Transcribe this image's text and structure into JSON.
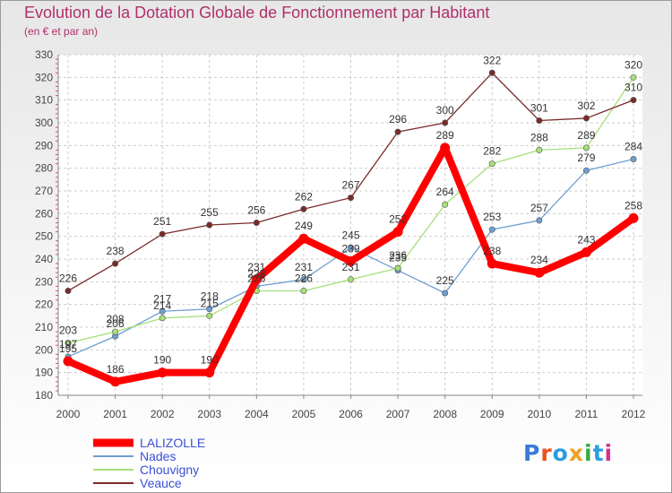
{
  "title": "Evolution de la Dotation Globale de Fonctionnement par Habitant",
  "subtitle": "(en € et par an)",
  "logo": {
    "text": "Proxiti",
    "colors": [
      "#3a7bd5",
      "#e8531e",
      "#2b9de0",
      "#f0a020",
      "#3aa844",
      "#2b9de0",
      "#d8308a"
    ]
  },
  "chart_data": {
    "type": "line",
    "categories": [
      "2000",
      "2001",
      "2002",
      "2003",
      "2004",
      "2005",
      "2006",
      "2007",
      "2008",
      "2009",
      "2010",
      "2011",
      "2012"
    ],
    "ylim": [
      180,
      330
    ],
    "yticks": [
      180,
      190,
      200,
      210,
      220,
      230,
      240,
      250,
      260,
      270,
      280,
      290,
      300,
      310,
      320,
      330
    ],
    "grid": true,
    "legend_position": "bottom-left",
    "series": [
      {
        "name": "LALIZOLLE",
        "color": "#ff0000",
        "values": [
          195,
          186,
          190,
          190,
          231,
          249,
          239,
          252,
          289,
          238,
          234,
          243,
          258
        ]
      },
      {
        "name": "Nades",
        "color": "#6f9fd0",
        "values": [
          197,
          206,
          217,
          218,
          228,
          231,
          245,
          235,
          225,
          253,
          257,
          279,
          284
        ]
      },
      {
        "name": "Chouvigny",
        "color": "#a6e07a",
        "values": [
          203,
          208,
          214,
          215,
          226,
          226,
          231,
          236,
          264,
          282,
          288,
          289,
          320
        ]
      },
      {
        "name": "Veauce",
        "color": "#7a2a2a",
        "values": [
          226,
          238,
          251,
          255,
          256,
          262,
          267,
          296,
          300,
          322,
          301,
          302,
          310
        ]
      }
    ]
  }
}
